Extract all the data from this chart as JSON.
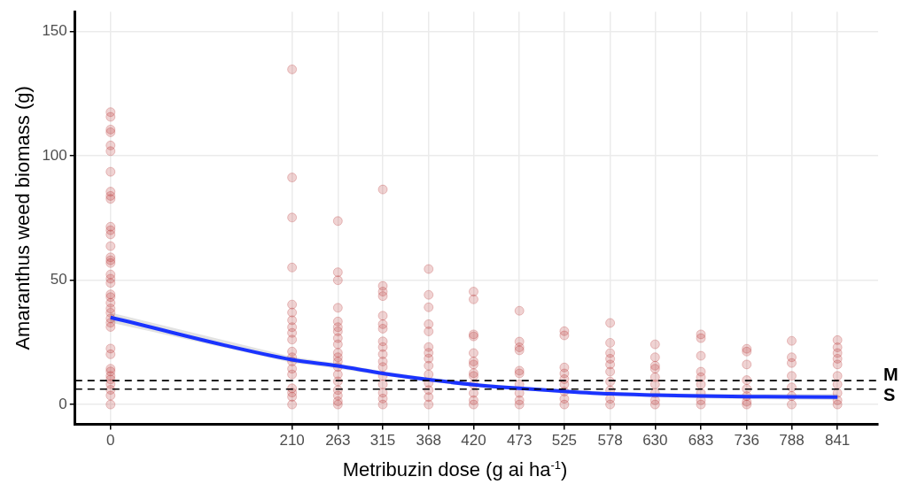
{
  "chart_data": {
    "type": "scatter",
    "xlabel": "Metribuzin dose (g ai ha$^{-1}$)",
    "ylabel": "Amaranthus weed biomass (g)",
    "xlim": [
      -41,
      888
    ],
    "xticks": [
      0,
      210,
      263,
      315,
      368,
      420,
      473,
      525,
      578,
      630,
      683,
      736,
      788,
      841
    ],
    "ylim": [
      -8,
      158
    ],
    "yticks": [
      0,
      50,
      100,
      150
    ],
    "grid": true,
    "legend": false,
    "series": [
      {
        "marker": "circle",
        "color": "#b22222",
        "x": [
          0,
          0,
          0,
          0,
          0,
          0,
          0,
          0,
          0,
          0,
          0,
          0,
          0,
          0,
          0,
          0,
          0,
          0,
          0,
          0,
          0,
          0,
          0,
          0,
          0,
          0,
          0,
          0,
          0,
          0,
          0,
          0,
          0,
          0,
          0,
          0,
          0,
          0,
          210,
          210,
          210,
          210,
          210,
          210,
          210,
          210,
          210,
          210,
          210,
          210,
          210,
          210,
          210,
          210,
          210,
          210,
          210,
          263,
          263,
          263,
          263,
          263,
          263,
          263,
          263,
          263,
          263,
          263,
          263,
          263,
          263,
          263,
          263,
          263,
          263,
          263,
          315,
          315,
          315,
          315,
          315,
          315,
          315,
          315,
          315,
          315,
          315,
          315,
          315,
          315,
          315,
          315,
          315,
          368,
          368,
          368,
          368,
          368,
          368,
          368,
          368,
          368,
          368,
          368,
          368,
          368,
          368,
          420,
          420,
          420,
          420,
          420,
          420,
          420,
          420,
          420,
          420,
          420,
          420,
          420,
          473,
          473,
          473,
          473,
          473,
          473,
          473,
          473,
          473,
          473,
          525,
          525,
          525,
          525,
          525,
          525,
          525,
          525,
          525,
          578,
          578,
          578,
          578,
          578,
          578,
          578,
          578,
          578,
          578,
          630,
          630,
          630,
          630,
          630,
          630,
          630,
          630,
          630,
          683,
          683,
          683,
          683,
          683,
          683,
          683,
          683,
          683,
          736,
          736,
          736,
          736,
          736,
          736,
          736,
          736,
          788,
          788,
          788,
          788,
          788,
          788,
          788,
          841,
          841,
          841,
          841,
          841,
          841,
          841,
          841,
          841,
          841
        ],
        "values": [
          117.6,
          115.7,
          110.6,
          109.5,
          104.2,
          101.9,
          93.6,
          85.6,
          83.9,
          82.7,
          71.5,
          70.1,
          68.4,
          63.7,
          59.2,
          58,
          56.9,
          52.3,
          50.6,
          48.9,
          44.3,
          43.2,
          40.9,
          38.6,
          36.9,
          34.6,
          32.9,
          31.2,
          22.5,
          20.2,
          14.4,
          13.3,
          11.5,
          10.1,
          8.2,
          5.9,
          3.6,
          0,
          134.8,
          91.3,
          75.2,
          55.1,
          40.2,
          37,
          33.9,
          31.1,
          28.8,
          26.1,
          21.3,
          19,
          17.3,
          14.4,
          12.1,
          6.5,
          4.8,
          3.1,
          0,
          73.8,
          53.2,
          50,
          38.9,
          33.4,
          31.1,
          29.4,
          26.7,
          24.2,
          20.8,
          19,
          17.3,
          15.1,
          12.1,
          9.3,
          5.8,
          3.6,
          1.3,
          0,
          86.5,
          47.7,
          45.4,
          43.6,
          35.7,
          32.3,
          30.5,
          25.4,
          23.1,
          20.2,
          17.3,
          15.1,
          11.5,
          8.1,
          4.7,
          2.4,
          0,
          54.5,
          44.1,
          39.1,
          32.3,
          29.4,
          23.1,
          20.8,
          18.5,
          15.6,
          12.1,
          8.7,
          5.8,
          3,
          0,
          45.4,
          42.3,
          28.2,
          27.4,
          20.7,
          17.3,
          16.1,
          12.6,
          11.5,
          8.1,
          4.6,
          1.7,
          0,
          37.7,
          25.3,
          23,
          21.8,
          13.6,
          12.5,
          8.1,
          4.6,
          1.7,
          0,
          29.5,
          27.8,
          14.9,
          12.5,
          10.2,
          8.1,
          5.2,
          2.3,
          0,
          32.8,
          24.8,
          20.7,
          18.4,
          16.1,
          13.2,
          9.2,
          5.7,
          2.3,
          0,
          24.2,
          19,
          15.6,
          14.4,
          11,
          8.1,
          4.6,
          1.7,
          0,
          28.2,
          26.7,
          19.6,
          13.2,
          11,
          8.1,
          4.6,
          1.7,
          0,
          22.4,
          21.3,
          16.1,
          9.8,
          6.3,
          3.4,
          1.1,
          0,
          25.6,
          19,
          16.7,
          11.5,
          6.9,
          3.4,
          0,
          25.9,
          23,
          20.7,
          18.4,
          16.1,
          11.5,
          8.1,
          4.6,
          1.7,
          0
        ]
      },
      {
        "type": "line",
        "marker": "none",
        "color": "#1a33ff",
        "x": [
          0,
          210,
          263,
          315,
          368,
          420,
          473,
          525,
          578,
          630,
          683,
          736,
          788,
          841
        ],
        "values": [
          35,
          18,
          15.5,
          12.5,
          10,
          8,
          6.5,
          5.3,
          4.3,
          3.8,
          3.4,
          3.2,
          3.1,
          3
        ],
        "lower": [
          33,
          16.8,
          14.5,
          11.6,
          9.2,
          7.2,
          5.8,
          4.6,
          3.6,
          3,
          2.5,
          2.2,
          2,
          1.8
        ],
        "upper": [
          37,
          19.2,
          16.5,
          13.4,
          10.8,
          8.8,
          7.2,
          6,
          5,
          4.6,
          4.3,
          4.2,
          4.2,
          4.2
        ]
      }
    ],
    "ref_lines": [
      {
        "axis": "y",
        "value": 9.6,
        "label": "M",
        "color": "#000000",
        "line_style": "dashed"
      },
      {
        "axis": "y",
        "value": 6.2,
        "label": "S",
        "color": "#000000",
        "line_style": "dashed"
      }
    ]
  }
}
